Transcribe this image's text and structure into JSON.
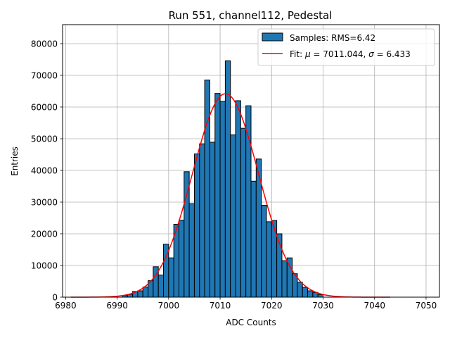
{
  "chart_data": {
    "type": "bar",
    "title": "Run 551, channel112, Pedestal",
    "xlabel": "ADC Counts",
    "ylabel": "Entries",
    "xlim": [
      6979.4,
      7052.6
    ],
    "ylim": [
      0,
      86000
    ],
    "x_ticks": [
      6980,
      6990,
      7000,
      7010,
      7020,
      7030,
      7040,
      7050
    ],
    "y_ticks": [
      0,
      10000,
      20000,
      30000,
      40000,
      50000,
      60000,
      70000,
      80000
    ],
    "x_tick_labels": [
      "6980",
      "6990",
      "7000",
      "7010",
      "7020",
      "7030",
      "7040",
      "7050"
    ],
    "y_tick_labels": [
      "0",
      "10000",
      "20000",
      "30000",
      "40000",
      "50000",
      "60000",
      "70000",
      "80000"
    ],
    "grid": true,
    "legend_position": "top-right",
    "series": [
      {
        "name": "Samples: RMS=6.42",
        "kind": "histogram",
        "color": "#1f77b4",
        "edgecolor": "#000000",
        "bin_width": 1.0,
        "bin_left_edges": [
          6991,
          6992,
          6993,
          6994,
          6995,
          6996,
          6997,
          6998,
          6999,
          7000,
          7001,
          7002,
          7003,
          7004,
          7005,
          7006,
          7007,
          7008,
          7009,
          7010,
          7011,
          7012,
          7013,
          7014,
          7015,
          7016,
          7017,
          7018,
          7019,
          7020,
          7021,
          7022,
          7023,
          7024,
          7025,
          7026,
          7027,
          7028,
          7029
        ],
        "values": [
          500,
          900,
          1800,
          2000,
          3200,
          5200,
          9600,
          7000,
          16700,
          12400,
          23000,
          24300,
          39600,
          29500,
          45200,
          48400,
          68500,
          48900,
          64300,
          61800,
          74600,
          51200,
          62000,
          53300,
          60400,
          36600,
          43600,
          29000,
          23800,
          24200,
          20000,
          11500,
          12400,
          7400,
          4700,
          3100,
          2000,
          1500,
          800
        ]
      },
      {
        "name": "Fit: $\\mu$ = 7011.044, $\\sigma$ = 6.433",
        "kind": "gaussian_fit",
        "color": "#ff0000",
        "amplitude": 64200,
        "mu": 7011.044,
        "sigma": 6.433,
        "x_range": [
          6981,
          7043
        ]
      }
    ]
  },
  "legend": {
    "hist_label": "Samples: RMS=6.42",
    "fit_prefix": "Fit: ",
    "mu_symbol": "μ",
    "fit_mid": " = 7011.044, ",
    "sigma_symbol": "σ",
    "fit_suffix": " = 6.433"
  }
}
